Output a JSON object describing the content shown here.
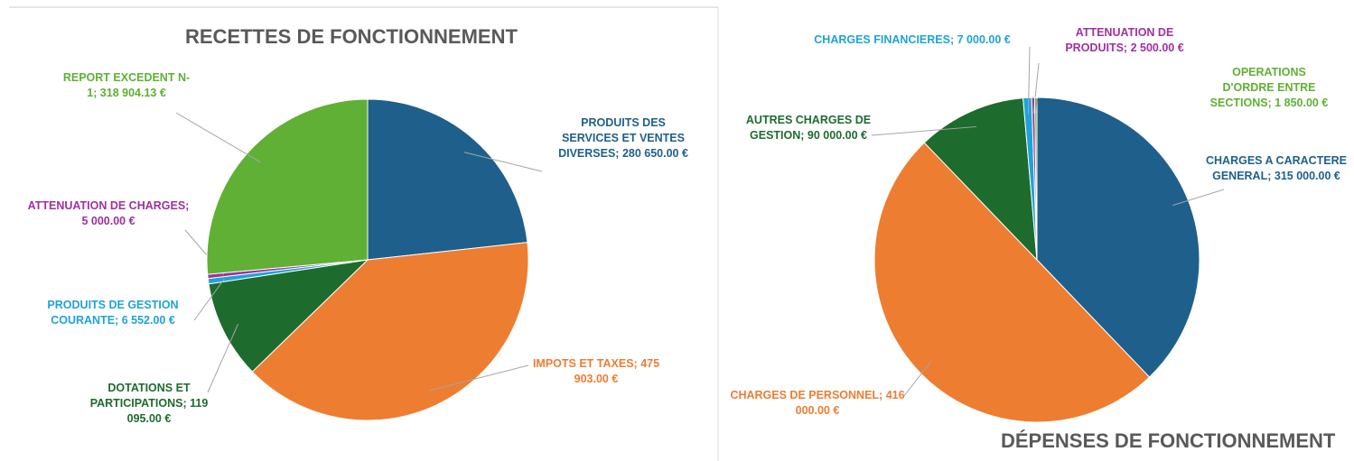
{
  "chart_data": [
    {
      "type": "pie",
      "title": "RECETTES DE FONCTIONNEMENT",
      "categories": [
        "PRODUITS DES SERVICES ET VENTES DIVERSES;",
        "IMPOTS ET TAXES;",
        "DOTATIONS ET PARTICIPATIONS;",
        "PRODUITS DE GESTION COURANTE;",
        "ATTENUATION DE CHARGES;",
        "REPORT EXCEDENT N-1;"
      ],
      "values": [
        280650,
        475903,
        119095,
        6552,
        5000,
        318904.13
      ],
      "value_labels": [
        "280 650.00 €",
        "475 903.00 €",
        "119 095.00 €",
        "6 552.00 €",
        "5 000.00 €",
        "318 904.13 €"
      ],
      "colors": [
        "#1f5f8b",
        "#ed7d31",
        "#1e6b2e",
        "#1fa3d6",
        "#a030a0",
        "#5fb034"
      ]
    },
    {
      "type": "pie",
      "title": "DÉPENSES DE FONCTIONNEMENT",
      "categories": [
        "CHARGES A CARACTERE GENERAL;",
        "CHARGES DE PERSONNEL;",
        "AUTRES CHARGES DE GESTION;",
        "CHARGES FINANCIERES;",
        "ATTENUATION DE PRODUITS;",
        "OPERATIONS D'ORDRE ENTRE SECTIONS;"
      ],
      "values": [
        315000,
        416000,
        90000,
        7000,
        2500,
        1850
      ],
      "value_labels": [
        "315 000.00 €",
        "416 000.00 €",
        "90 000.00 €",
        "7 000.00 €",
        "2 500.00 €",
        "1 850.00 €"
      ],
      "colors": [
        "#1f5f8b",
        "#ed7d31",
        "#1e6b2e",
        "#1fa3d6",
        "#a030a0",
        "#5fb034"
      ]
    }
  ]
}
